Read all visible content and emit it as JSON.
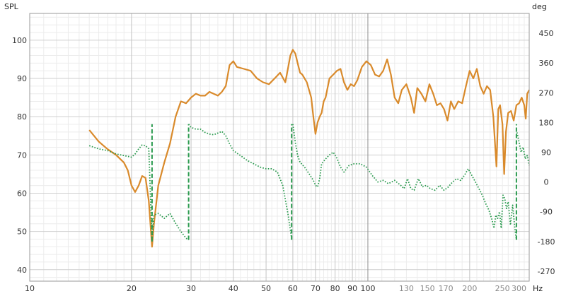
{
  "chart_data": {
    "type": "line",
    "left_axis_unit": "SPL",
    "right_axis_unit": "deg",
    "x_axis_unit": "Hz",
    "x_scale": "log",
    "xlim": [
      10,
      300
    ],
    "ylim_left": [
      37,
      107
    ],
    "ylim_right": [
      -300,
      510
    ],
    "grid": true,
    "x_ticks_major": [
      {
        "value": 10,
        "label": "10"
      },
      {
        "value": 20,
        "label": "20"
      },
      {
        "value": 30,
        "label": "30"
      },
      {
        "value": 40,
        "label": "40"
      },
      {
        "value": 50,
        "label": "50"
      },
      {
        "value": 60,
        "label": "60"
      },
      {
        "value": 70,
        "label": "70"
      },
      {
        "value": 80,
        "label": "80"
      },
      {
        "value": 90,
        "label": "90"
      },
      {
        "value": 100,
        "label": "100"
      }
    ],
    "x_ticks_minor": [
      {
        "value": 130,
        "label": "130"
      },
      {
        "value": 150,
        "label": "150"
      },
      {
        "value": 170,
        "label": "170"
      },
      {
        "value": 200,
        "label": "200"
      },
      {
        "value": 250,
        "label": "250"
      },
      {
        "value": 300,
        "label": "300"
      }
    ],
    "y_ticks_left": [
      {
        "value": 100,
        "label": "100"
      },
      {
        "value": 90,
        "label": "90"
      },
      {
        "value": 80,
        "label": "80"
      },
      {
        "value": 70,
        "label": "70"
      },
      {
        "value": 60,
        "label": "60"
      },
      {
        "value": 50,
        "label": "50"
      },
      {
        "value": 40,
        "label": "40"
      }
    ],
    "y_ticks_right": [
      {
        "value": 450,
        "label": "450"
      },
      {
        "value": 360,
        "label": "360"
      },
      {
        "value": 270,
        "label": "270"
      },
      {
        "value": 180,
        "label": "180"
      },
      {
        "value": 90,
        "label": "90"
      },
      {
        "value": 0,
        "label": "0"
      },
      {
        "value": -90,
        "label": "-90"
      },
      {
        "value": -180,
        "label": "-180"
      },
      {
        "value": -270,
        "label": "-270"
      }
    ],
    "series": [
      {
        "axis": "left",
        "color": "#d98a2b",
        "style": "solid",
        "points": [
          [
            15.0,
            76.5
          ],
          [
            16.0,
            73.5
          ],
          [
            17.0,
            71.5
          ],
          [
            18.0,
            70.0
          ],
          [
            19.0,
            68.0
          ],
          [
            19.5,
            66.0
          ],
          [
            20.0,
            62.0
          ],
          [
            20.5,
            60.3
          ],
          [
            21.0,
            62.0
          ],
          [
            21.5,
            64.5
          ],
          [
            22.0,
            64.0
          ],
          [
            22.5,
            58.0
          ],
          [
            23.0,
            46.0
          ],
          [
            23.3,
            52.0
          ],
          [
            24.0,
            62.0
          ],
          [
            25.0,
            68.0
          ],
          [
            26.0,
            73.0
          ],
          [
            27.0,
            80.0
          ],
          [
            28.0,
            84.0
          ],
          [
            29.0,
            83.5
          ],
          [
            30.0,
            85.0
          ],
          [
            31.0,
            86.0
          ],
          [
            32.0,
            85.5
          ],
          [
            33.0,
            85.5
          ],
          [
            34.0,
            86.5
          ],
          [
            35.0,
            86.0
          ],
          [
            36.0,
            85.5
          ],
          [
            37.0,
            86.5
          ],
          [
            38.0,
            88.0
          ],
          [
            39.0,
            93.5
          ],
          [
            40.0,
            94.5
          ],
          [
            41.0,
            93.0
          ],
          [
            43.0,
            92.5
          ],
          [
            45.0,
            92.0
          ],
          [
            47.0,
            90.0
          ],
          [
            49.0,
            89.0
          ],
          [
            51.0,
            88.5
          ],
          [
            53.0,
            90.0
          ],
          [
            55.0,
            91.5
          ],
          [
            57.0,
            89.0
          ],
          [
            58.0,
            92.5
          ],
          [
            59.0,
            96.0
          ],
          [
            60.0,
            97.5
          ],
          [
            61.0,
            96.5
          ],
          [
            62.0,
            94.0
          ],
          [
            63.0,
            91.5
          ],
          [
            64.0,
            91.0
          ],
          [
            66.0,
            89.0
          ],
          [
            68.0,
            85.0
          ],
          [
            69.0,
            80.0
          ],
          [
            70.0,
            75.5
          ],
          [
            71.0,
            78.5
          ],
          [
            72.0,
            80.0
          ],
          [
            73.0,
            81.0
          ],
          [
            74.0,
            84.0
          ],
          [
            75.0,
            85.0
          ],
          [
            77.0,
            90.0
          ],
          [
            79.0,
            91.0
          ],
          [
            81.0,
            92.0
          ],
          [
            83.0,
            92.5
          ],
          [
            85.0,
            89.0
          ],
          [
            87.0,
            87.0
          ],
          [
            89.0,
            88.5
          ],
          [
            91.0,
            88.0
          ],
          [
            93.0,
            89.5
          ],
          [
            96.0,
            93.0
          ],
          [
            99.0,
            94.5
          ],
          [
            102.0,
            93.5
          ],
          [
            105.0,
            91.0
          ],
          [
            108.0,
            90.5
          ],
          [
            111.0,
            92.0
          ],
          [
            114.0,
            95.0
          ],
          [
            117.0,
            91.0
          ],
          [
            120.0,
            85.0
          ],
          [
            123.0,
            83.5
          ],
          [
            126.0,
            87.0
          ],
          [
            130.0,
            88.5
          ],
          [
            134.0,
            85.0
          ],
          [
            137.0,
            81.0
          ],
          [
            140.0,
            87.5
          ],
          [
            144.0,
            86.0
          ],
          [
            148.0,
            84.0
          ],
          [
            152.0,
            88.5
          ],
          [
            156.0,
            86.0
          ],
          [
            160.0,
            83.0
          ],
          [
            164.0,
            83.5
          ],
          [
            168.0,
            82.0
          ],
          [
            172.0,
            79.0
          ],
          [
            176.0,
            84.0
          ],
          [
            180.0,
            82.0
          ],
          [
            185.0,
            84.0
          ],
          [
            190.0,
            83.5
          ],
          [
            195.0,
            88.0
          ],
          [
            200.0,
            92.0
          ],
          [
            205.0,
            90.0
          ],
          [
            210.0,
            92.5
          ],
          [
            215.0,
            88.0
          ],
          [
            220.0,
            86.0
          ],
          [
            225.0,
            88.0
          ],
          [
            230.0,
            87.0
          ],
          [
            235.0,
            80.0
          ],
          [
            240.0,
            67.0
          ],
          [
            243.0,
            82.0
          ],
          [
            246.0,
            83.0
          ],
          [
            250.0,
            78.0
          ],
          [
            253.0,
            65.0
          ],
          [
            256.0,
            76.0
          ],
          [
            260.0,
            81.0
          ],
          [
            265.0,
            81.5
          ],
          [
            270.0,
            79.0
          ],
          [
            275.0,
            83.0
          ],
          [
            280.0,
            83.5
          ],
          [
            285.0,
            85.0
          ],
          [
            290.0,
            83.0
          ],
          [
            293.0,
            79.5
          ],
          [
            296.0,
            86.0
          ],
          [
            300.0,
            87.0
          ]
        ]
      },
      {
        "axis": "right",
        "color": "#2a9a4e",
        "style": "dotted",
        "points": [
          [
            15.0,
            110
          ],
          [
            16.0,
            100
          ],
          [
            17.0,
            95
          ],
          [
            18.0,
            85
          ],
          [
            19.0,
            80
          ],
          [
            20.0,
            75
          ],
          [
            20.5,
            85
          ],
          [
            21.0,
            100
          ],
          [
            21.5,
            112
          ],
          [
            22.0,
            110
          ],
          [
            22.5,
            100
          ],
          [
            23.0,
            -175
          ],
          [
            23.3,
            -100
          ],
          [
            24.0,
            -95
          ],
          [
            25.0,
            -110
          ],
          [
            26.0,
            -95
          ],
          [
            27.0,
            -125
          ],
          [
            28.0,
            -150
          ],
          [
            29.0,
            -170
          ],
          [
            29.5,
            -175
          ]
        ]
      },
      {
        "axis": "right",
        "color": "#2a9a4e",
        "style": "dotted",
        "points": [
          [
            29.5,
            175
          ],
          [
            30.0,
            165
          ],
          [
            31.0,
            160
          ],
          [
            32.0,
            160
          ],
          [
            33.0,
            150
          ],
          [
            34.0,
            145
          ],
          [
            35.0,
            143
          ],
          [
            36.0,
            148
          ],
          [
            37.0,
            153
          ],
          [
            38.0,
            140
          ],
          [
            39.0,
            115
          ],
          [
            40.0,
            95
          ],
          [
            42.0,
            80
          ],
          [
            44.0,
            65
          ],
          [
            46.0,
            55
          ],
          [
            48.0,
            45
          ],
          [
            50.0,
            40
          ],
          [
            52.0,
            40
          ],
          [
            54.0,
            30
          ],
          [
            56.0,
            -10
          ],
          [
            58.0,
            -95
          ],
          [
            59.5,
            -170
          ]
        ]
      },
      {
        "axis": "right",
        "color": "#2a9a4e",
        "style": "dotted",
        "points": [
          [
            60.0,
            175
          ],
          [
            61.0,
            120
          ],
          [
            62.0,
            80
          ],
          [
            63.0,
            60
          ],
          [
            65.0,
            45
          ],
          [
            67.0,
            25
          ],
          [
            69.0,
            5
          ],
          [
            70.0,
            -10
          ],
          [
            71.0,
            -15
          ],
          [
            72.0,
            10
          ],
          [
            73.0,
            55
          ],
          [
            75.0,
            70
          ],
          [
            77.0,
            82
          ],
          [
            79.0,
            90
          ],
          [
            81.0,
            72
          ],
          [
            83.0,
            45
          ],
          [
            85.0,
            30
          ],
          [
            88.0,
            50
          ],
          [
            91.0,
            55
          ],
          [
            95.0,
            55
          ],
          [
            99.0,
            45
          ],
          [
            103.0,
            20
          ],
          [
            107.0,
            0
          ],
          [
            111.0,
            5
          ],
          [
            115.0,
            -5
          ],
          [
            120.0,
            5
          ],
          [
            125.0,
            -10
          ],
          [
            128.0,
            -20
          ],
          [
            131.0,
            10
          ],
          [
            134.0,
            -20
          ],
          [
            137.0,
            -25
          ],
          [
            141.0,
            10
          ],
          [
            145.0,
            -15
          ],
          [
            149.0,
            -10
          ],
          [
            153.0,
            -20
          ],
          [
            158.0,
            -25
          ],
          [
            163.0,
            -10
          ],
          [
            168.0,
            -25
          ],
          [
            173.0,
            -15
          ],
          [
            178.0,
            0
          ],
          [
            183.0,
            10
          ],
          [
            188.0,
            5
          ],
          [
            193.0,
            20
          ],
          [
            198.0,
            40
          ],
          [
            203.0,
            20
          ],
          [
            208.0,
            0
          ],
          [
            213.0,
            -20
          ],
          [
            218.0,
            -40
          ],
          [
            223.0,
            -65
          ],
          [
            228.0,
            -85
          ],
          [
            233.0,
            -115
          ],
          [
            236.0,
            -140
          ],
          [
            239.0,
            -100
          ],
          [
            242.0,
            -110
          ],
          [
            245.0,
            -90
          ],
          [
            248.0,
            -140
          ],
          [
            251.0,
            -40
          ],
          [
            254.0,
            -50
          ],
          [
            257.0,
            -80
          ],
          [
            260.0,
            -60
          ],
          [
            264.0,
            -130
          ],
          [
            268.0,
            -70
          ],
          [
            272.0,
            -140
          ],
          [
            275.0,
            -175
          ]
        ]
      },
      {
        "axis": "right",
        "color": "#2a9a4e",
        "style": "dotted",
        "points": [
          [
            276.0,
            150
          ],
          [
            280.0,
            120
          ],
          [
            284.0,
            90
          ],
          [
            288.0,
            105
          ],
          [
            292.0,
            70
          ],
          [
            296.0,
            80
          ],
          [
            300.0,
            50
          ]
        ]
      },
      {
        "axis": "right",
        "color": "#2a9a4e",
        "style": "dashed",
        "points": [
          [
            23.0,
            -180
          ],
          [
            23.0,
            175
          ]
        ]
      },
      {
        "axis": "right",
        "color": "#2a9a4e",
        "style": "dashed",
        "points": [
          [
            29.5,
            -175
          ],
          [
            29.5,
            175
          ]
        ]
      },
      {
        "axis": "right",
        "color": "#2a9a4e",
        "style": "dashed",
        "points": [
          [
            59.5,
            -175
          ],
          [
            59.5,
            175
          ]
        ]
      },
      {
        "axis": "right",
        "color": "#2a9a4e",
        "style": "dashed",
        "points": [
          [
            275.0,
            -175
          ],
          [
            275.0,
            175
          ]
        ]
      }
    ]
  }
}
